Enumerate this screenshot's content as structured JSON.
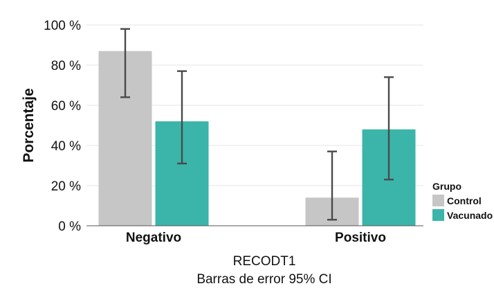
{
  "chart_data": {
    "type": "bar",
    "ylabel": "Porcentaje",
    "xlabel": "RECODT1",
    "subtitle": "Barras de error 95% CI",
    "categories": [
      "Negativo",
      "Positivo"
    ],
    "ylim": [
      0,
      100
    ],
    "y_ticks": [
      "0 %",
      "20 %",
      "40 %",
      "60 %",
      "80 %",
      "100 %"
    ],
    "y_tick_values": [
      0,
      20,
      40,
      60,
      80,
      100
    ],
    "grid": true,
    "legend": {
      "title": "Grupo",
      "placement": "right"
    },
    "series": [
      {
        "name": "Control",
        "color": "#c6c6c6",
        "values": [
          87,
          14
        ],
        "ci_low": [
          64,
          3
        ],
        "ci_high": [
          98,
          37
        ]
      },
      {
        "name": "Vacunado",
        "color": "#3bb5aa",
        "values": [
          52,
          48
        ],
        "ci_low": [
          31,
          23
        ],
        "ci_high": [
          77,
          74
        ]
      }
    ]
  }
}
